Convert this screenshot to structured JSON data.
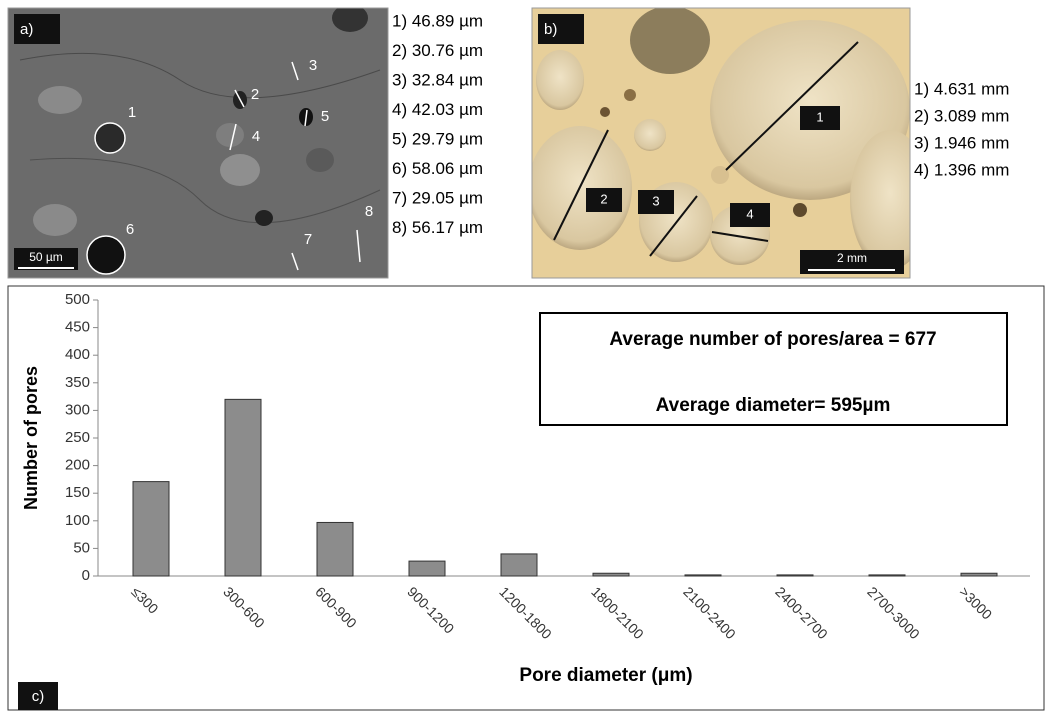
{
  "panel_a": {
    "label": "a)",
    "scale_bar": "50 µm",
    "markers": [
      "1",
      "2",
      "3",
      "4",
      "5",
      "6",
      "7",
      "8"
    ],
    "measurements": [
      "1) 46.89 µm",
      "2) 30.76 µm",
      "3) 32.84 µm",
      "4) 42.03 µm",
      "5) 29.79 µm",
      "6) 58.06 µm",
      "7) 29.05 µm",
      "8) 56.17 µm"
    ]
  },
  "panel_b": {
    "label": "b)",
    "scale_bar": "2 mm",
    "markers": [
      "1",
      "2",
      "3",
      "4"
    ],
    "measurements": [
      "1) 4.631 mm",
      "2) 3.089 mm",
      "3) 1.946 mm",
      "4) 1.396 mm"
    ]
  },
  "chart_data": {
    "type": "bar",
    "panel_label": "c)",
    "annotations": [
      "Average number of pores/area = 677",
      "Average diameter= 595µm"
    ],
    "x_label": "Pore diameter (μm)",
    "y_label": "Number of pores",
    "categories": [
      "≤300",
      "300-600",
      "600-900",
      "900-1200",
      "1200-1800",
      "1800-2100",
      "2100-2400",
      "2400-2700",
      "2700-3000",
      ">3000"
    ],
    "values": [
      171,
      320,
      97,
      27,
      40,
      5,
      2,
      2,
      2,
      5
    ],
    "color": "#8c8c8c",
    "ylim": [
      0,
      500
    ],
    "yticks": [
      0,
      50,
      100,
      150,
      200,
      250,
      300,
      350,
      400,
      450,
      500
    ],
    "grid": false
  }
}
